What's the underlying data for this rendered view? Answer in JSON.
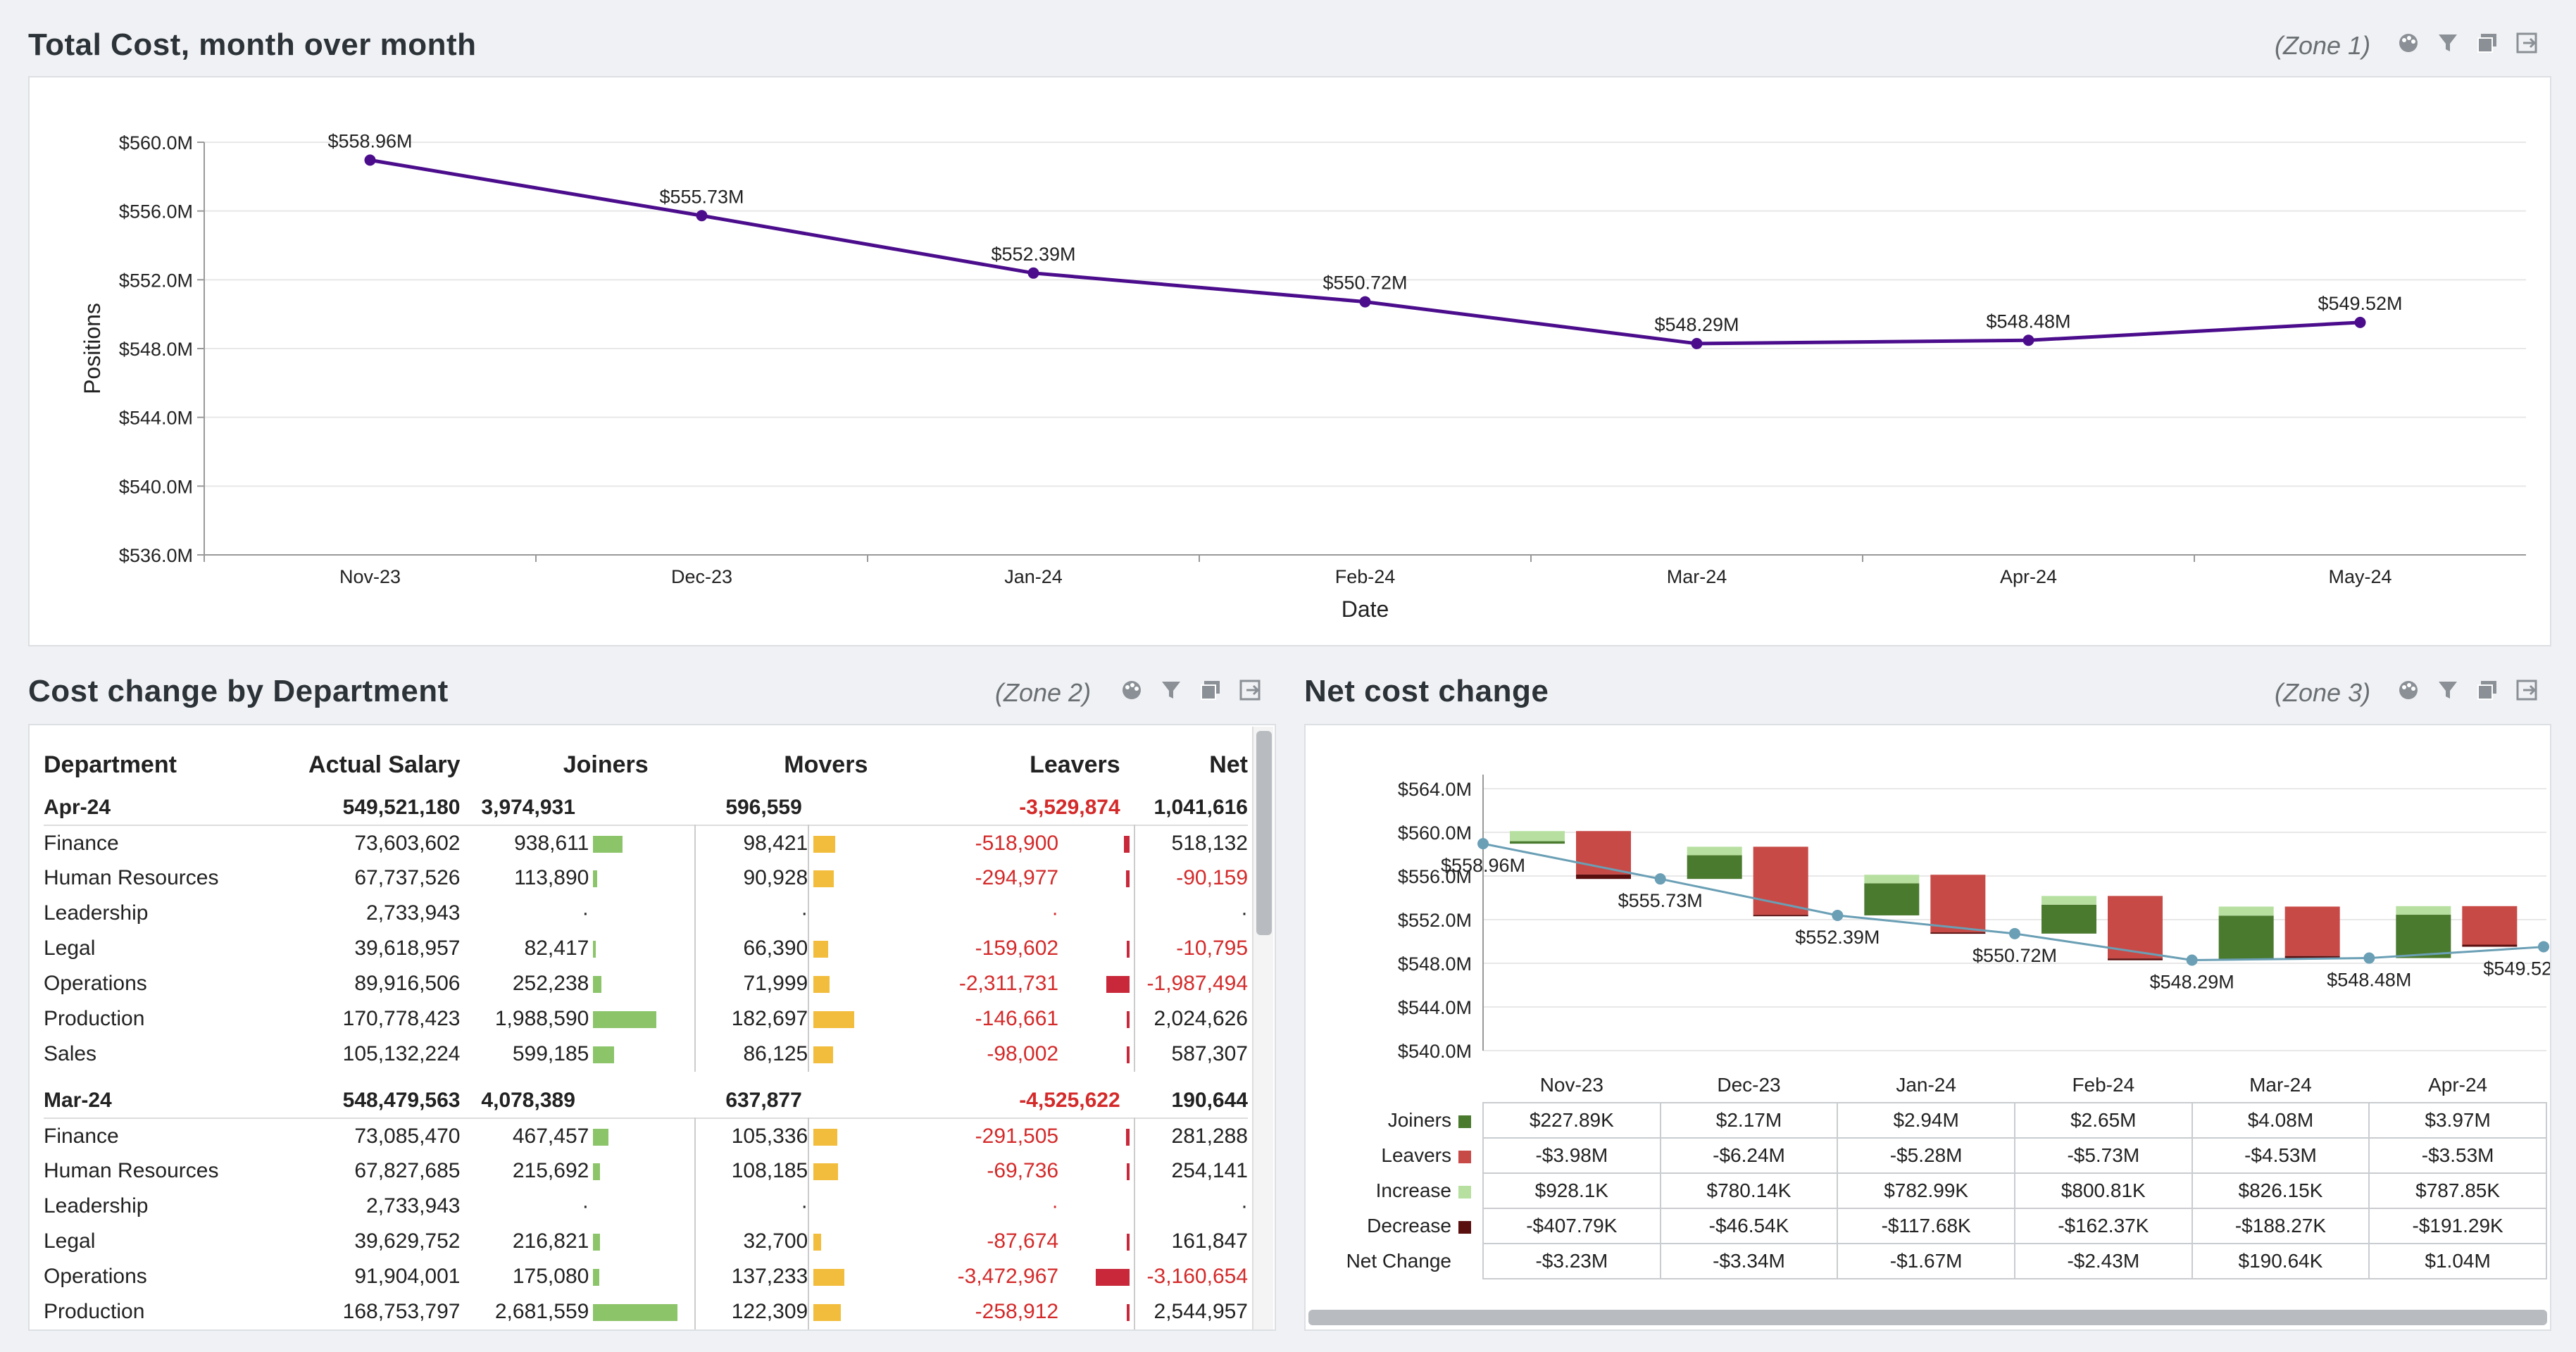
{
  "zone1": {
    "title": "Total Cost, month over month",
    "zone_label": "(Zone 1)"
  },
  "zone2": {
    "title": "Cost change by Department",
    "zone_label": "(Zone 2)"
  },
  "zone3": {
    "title": "Net cost change",
    "zone_label": "(Zone 3)"
  },
  "icons": [
    "palette-icon",
    "filter-icon",
    "comment-icon",
    "export-icon"
  ],
  "chart_data": [
    {
      "type": "line",
      "xlabel": "Date",
      "ylabel": "Positions",
      "categories": [
        "Nov-23",
        "Dec-23",
        "Jan-24",
        "Feb-24",
        "Mar-24",
        "Apr-24",
        "May-24"
      ],
      "values": [
        558.96,
        555.73,
        552.39,
        550.72,
        548.29,
        548.48,
        549.52
      ],
      "data_labels": [
        "$558.96M",
        "$555.73M",
        "$552.39M",
        "$550.72M",
        "$548.29M",
        "$548.48M",
        "$549.52M"
      ],
      "ylim": [
        536,
        560
      ],
      "yticks": [
        "$536.0M",
        "$540.0M",
        "$544.0M",
        "$548.0M",
        "$552.0M",
        "$556.0M",
        "$560.0M"
      ],
      "line_color": "#4b0d8c",
      "grid": true
    },
    {
      "type": "bar",
      "subtype": "waterfall",
      "categories": [
        "Nov-23",
        "Dec-23",
        "Jan-24",
        "Feb-24",
        "Mar-24",
        "Apr-24"
      ],
      "ylim": [
        540,
        564
      ],
      "yticks": [
        "$540.0M",
        "$544.0M",
        "$548.0M",
        "$552.0M",
        "$556.0M",
        "$560.0M",
        "$564.0M"
      ],
      "net_line": [
        558.96,
        555.73,
        552.39,
        550.72,
        548.29,
        548.48,
        549.52
      ],
      "net_labels": [
        "$558.96M",
        "$555.73M",
        "$552.39M",
        "$550.72M",
        "$548.29M",
        "$548.48M",
        "$549.52"
      ],
      "series": [
        {
          "name": "Joiners",
          "color": "#4a7a2e",
          "values": [
            0.22789,
            2.17,
            2.94,
            2.65,
            4.08,
            3.97
          ],
          "labels": [
            "$227.89K",
            "$2.17M",
            "$2.94M",
            "$2.65M",
            "$4.08M",
            "$3.97M"
          ]
        },
        {
          "name": "Leavers",
          "color": "#c84a46",
          "values": [
            -3.98,
            -6.24,
            -5.28,
            -5.73,
            -4.53,
            -3.53
          ],
          "labels": [
            "-$3.98M",
            "-$6.24M",
            "-$5.28M",
            "-$5.73M",
            "-$4.53M",
            "-$3.53M"
          ]
        },
        {
          "name": "Increase",
          "color": "#b7e0a0",
          "values": [
            0.9281,
            0.78014,
            0.78299,
            0.80081,
            0.82615,
            0.78785
          ],
          "labels": [
            "$928.1K",
            "$780.14K",
            "$782.99K",
            "$800.81K",
            "$826.15K",
            "$787.85K"
          ]
        },
        {
          "name": "Decrease",
          "color": "#5a0f0f",
          "values": [
            -0.40779,
            -0.04654,
            -0.11768,
            -0.16237,
            -0.18827,
            -0.19129
          ],
          "labels": [
            "-$407.79K",
            "-$46.54K",
            "-$117.68K",
            "-$162.37K",
            "-$188.27K",
            "-$191.29K"
          ]
        },
        {
          "name": "Net Change",
          "values": [
            -3.23,
            -3.34,
            -1.67,
            -2.43,
            0.19064,
            1.04
          ],
          "labels": [
            "-$3.23M",
            "-$3.34M",
            "-$1.67M",
            "-$2.43M",
            "$190.64K",
            "$1.04M"
          ]
        }
      ]
    }
  ],
  "dept_table": {
    "headers": [
      "Department",
      "Actual Salary",
      "Joiners",
      "Movers",
      "Leavers",
      "Net"
    ],
    "groups": [
      {
        "month": "Apr-24",
        "salary": "549,521,180",
        "joiners": "3,974,931",
        "movers": "596,559",
        "leavers": "-3,529,874",
        "net": "1,041,616",
        "rows": [
          {
            "dept": "Finance",
            "salary": "73,603,602",
            "joiners": "938,611",
            "movers": "98,421",
            "leavers": "-518,900",
            "net": "518,132",
            "jb": 0.35,
            "mb": 0.52,
            "lb": 0.15
          },
          {
            "dept": "Human Resources",
            "salary": "67,737,526",
            "joiners": "113,890",
            "movers": "90,928",
            "leavers": "-294,977",
            "net": "-90,159",
            "jb": 0.05,
            "mb": 0.48,
            "lb": 0.09
          },
          {
            "dept": "Leadership",
            "salary": "2,733,943",
            "joiners": "·",
            "movers": "·",
            "leavers": "·",
            "net": "·",
            "jb": 0,
            "mb": 0,
            "lb": 0
          },
          {
            "dept": "Legal",
            "salary": "39,618,957",
            "joiners": "82,417",
            "movers": "66,390",
            "leavers": "-159,602",
            "net": "-10,795",
            "jb": 0.03,
            "mb": 0.35,
            "lb": 0.05
          },
          {
            "dept": "Operations",
            "salary": "89,916,506",
            "joiners": "252,238",
            "movers": "71,999",
            "leavers": "-2,311,731",
            "net": "-1,987,494",
            "jb": 0.1,
            "mb": 0.38,
            "lb": 0.68
          },
          {
            "dept": "Production",
            "salary": "170,778,423",
            "joiners": "1,988,590",
            "movers": "182,697",
            "leavers": "-146,661",
            "net": "2,024,626",
            "jb": 0.75,
            "mb": 0.97,
            "lb": 0.04
          },
          {
            "dept": "Sales",
            "salary": "105,132,224",
            "joiners": "599,185",
            "movers": "86,125",
            "leavers": "-98,002",
            "net": "587,307",
            "jb": 0.25,
            "mb": 0.46,
            "lb": 0.03
          }
        ]
      },
      {
        "month": "Mar-24",
        "salary": "548,479,563",
        "joiners": "4,078,389",
        "movers": "637,877",
        "leavers": "-4,525,622",
        "net": "190,644",
        "rows": [
          {
            "dept": "Finance",
            "salary": "73,085,470",
            "joiners": "467,457",
            "movers": "105,336",
            "leavers": "-291,505",
            "net": "281,288",
            "jb": 0.18,
            "mb": 0.56,
            "lb": 0.09
          },
          {
            "dept": "Human Resources",
            "salary": "67,827,685",
            "joiners": "215,692",
            "movers": "108,185",
            "leavers": "-69,736",
            "net": "254,141",
            "jb": 0.08,
            "mb": 0.58,
            "lb": 0.02
          },
          {
            "dept": "Leadership",
            "salary": "2,733,943",
            "joiners": "·",
            "movers": "·",
            "leavers": "·",
            "net": "·",
            "jb": 0,
            "mb": 0,
            "lb": 0
          },
          {
            "dept": "Legal",
            "salary": "39,629,752",
            "joiners": "216,821",
            "movers": "32,700",
            "leavers": "-87,674",
            "net": "161,847",
            "jb": 0.08,
            "mb": 0.18,
            "lb": 0.03
          },
          {
            "dept": "Operations",
            "salary": "91,904,001",
            "joiners": "175,080",
            "movers": "137,233",
            "leavers": "-3,472,967",
            "net": "-3,160,654",
            "jb": 0.07,
            "mb": 0.73,
            "lb": 1.0
          },
          {
            "dept": "Production",
            "salary": "168,753,797",
            "joiners": "2,681,559",
            "movers": "122,309",
            "leavers": "-258,912",
            "net": "2,544,957",
            "jb": 1.0,
            "mb": 0.65,
            "lb": 0.08
          }
        ]
      }
    ]
  }
}
